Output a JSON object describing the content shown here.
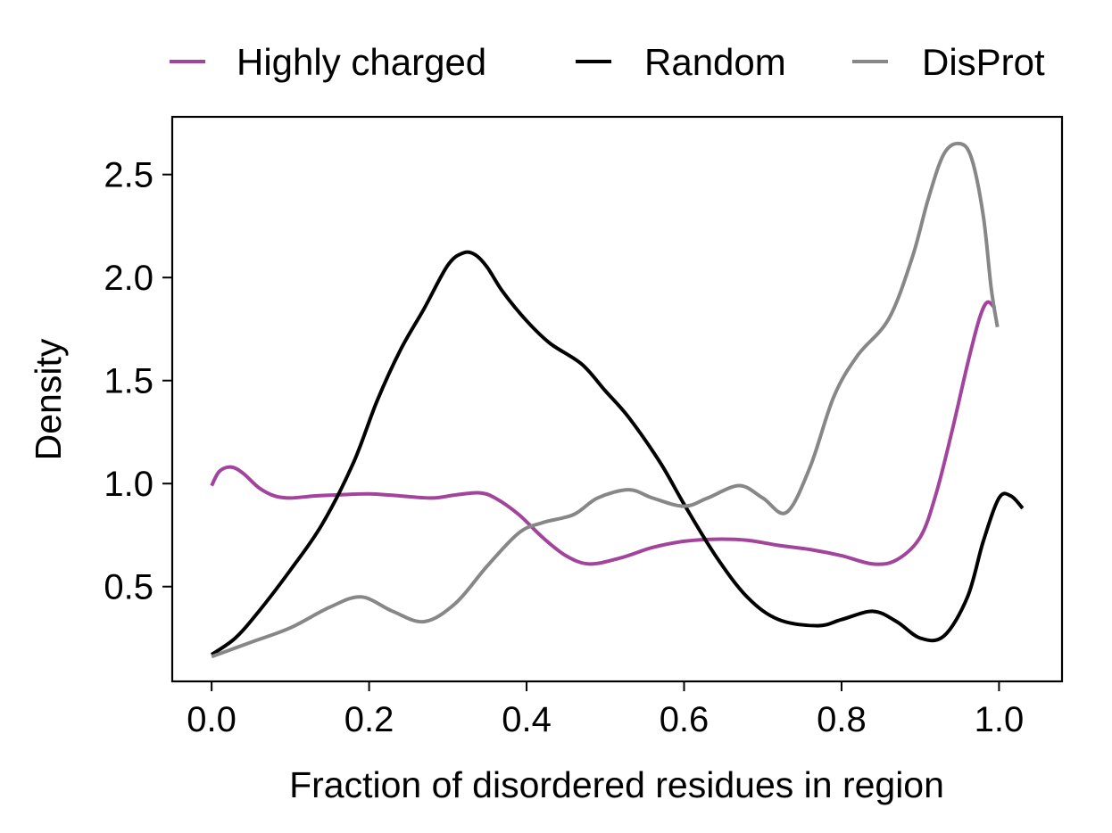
{
  "chart_data": {
    "type": "line",
    "title": "",
    "xlabel": "Fraction of disordered residues in region",
    "ylabel": "Density",
    "xlim": [
      -0.05,
      1.08
    ],
    "ylim": [
      0.04,
      2.78
    ],
    "xticks": [
      0.0,
      0.2,
      0.4,
      0.6,
      0.8,
      1.0
    ],
    "xtick_labels": [
      "0.0",
      "0.2",
      "0.4",
      "0.6",
      "0.8",
      "1.0"
    ],
    "yticks": [
      0.5,
      1.0,
      1.5,
      2.0,
      2.5
    ],
    "ytick_labels": [
      "0.5",
      "1.0",
      "1.5",
      "2.0",
      "2.5"
    ],
    "grid": false,
    "legend_position": "top, outside plot, horizontal",
    "series": [
      {
        "name": "Highly charged",
        "color": "#a3449c",
        "x": [
          0.0,
          0.01,
          0.025,
          0.04,
          0.06,
          0.08,
          0.1,
          0.13,
          0.16,
          0.2,
          0.24,
          0.28,
          0.31,
          0.34,
          0.36,
          0.39,
          0.42,
          0.45,
          0.48,
          0.52,
          0.56,
          0.6,
          0.64,
          0.68,
          0.72,
          0.76,
          0.8,
          0.84,
          0.87,
          0.9,
          0.92,
          0.94,
          0.96,
          0.975,
          0.985,
          0.995
        ],
        "y": [
          0.99,
          1.06,
          1.08,
          1.05,
          0.98,
          0.94,
          0.93,
          0.94,
          0.945,
          0.95,
          0.94,
          0.93,
          0.945,
          0.955,
          0.93,
          0.85,
          0.74,
          0.65,
          0.61,
          0.64,
          0.69,
          0.72,
          0.73,
          0.725,
          0.7,
          0.68,
          0.65,
          0.61,
          0.63,
          0.74,
          0.95,
          1.25,
          1.58,
          1.8,
          1.88,
          1.85
        ]
      },
      {
        "name": "Random",
        "color": "#000000",
        "x": [
          0.0,
          0.03,
          0.06,
          0.1,
          0.14,
          0.18,
          0.21,
          0.24,
          0.27,
          0.3,
          0.32,
          0.335,
          0.35,
          0.37,
          0.4,
          0.43,
          0.47,
          0.5,
          0.53,
          0.57,
          0.6,
          0.64,
          0.68,
          0.72,
          0.77,
          0.8,
          0.84,
          0.87,
          0.9,
          0.93,
          0.96,
          0.98,
          1.0,
          1.015,
          1.03
        ],
        "y": [
          0.17,
          0.25,
          0.38,
          0.58,
          0.8,
          1.1,
          1.4,
          1.65,
          1.85,
          2.06,
          2.12,
          2.11,
          2.05,
          1.93,
          1.79,
          1.68,
          1.58,
          1.45,
          1.32,
          1.1,
          0.9,
          0.65,
          0.45,
          0.34,
          0.31,
          0.34,
          0.38,
          0.33,
          0.25,
          0.26,
          0.45,
          0.72,
          0.93,
          0.94,
          0.88
        ]
      },
      {
        "name": "DisProt",
        "color": "#878787",
        "x": [
          0.0,
          0.05,
          0.1,
          0.15,
          0.19,
          0.23,
          0.27,
          0.31,
          0.35,
          0.39,
          0.42,
          0.46,
          0.49,
          0.53,
          0.56,
          0.6,
          0.63,
          0.67,
          0.7,
          0.73,
          0.76,
          0.79,
          0.82,
          0.86,
          0.89,
          0.91,
          0.93,
          0.95,
          0.965,
          0.98,
          0.99,
          0.998
        ],
        "y": [
          0.16,
          0.23,
          0.3,
          0.4,
          0.45,
          0.38,
          0.33,
          0.42,
          0.6,
          0.76,
          0.81,
          0.85,
          0.93,
          0.97,
          0.93,
          0.89,
          0.93,
          0.99,
          0.93,
          0.86,
          1.08,
          1.42,
          1.62,
          1.8,
          2.1,
          2.38,
          2.6,
          2.65,
          2.58,
          2.3,
          1.95,
          1.76
        ]
      }
    ]
  }
}
